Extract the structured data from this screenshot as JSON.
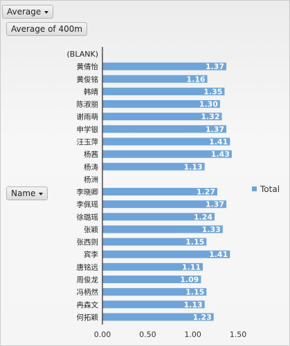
{
  "value_field": {
    "label": "Average"
  },
  "data_field": {
    "label": "Average of 400m"
  },
  "axis_field": {
    "label": "Name"
  },
  "legend": {
    "label": "Total"
  },
  "colors": {
    "bar": "#6fa4d9",
    "bar_label": "#ffffff"
  },
  "chart_data": {
    "type": "bar",
    "orientation": "horizontal",
    "categories": [
      "(BLANK)",
      "黄倩怡",
      "黄俊铭",
      "韩晴",
      "陈淑丽",
      "谢雨萌",
      "申学银",
      "汪玉萍",
      "杨茜",
      "杨涛",
      "杨洲",
      "李晓卿",
      "李佩瑶",
      "徐璐瑶",
      "张颖",
      "张西则",
      "宾李",
      "唐铭远",
      "周俊龙",
      "冯柄然",
      "冉森文",
      "何拓颖"
    ],
    "series": [
      {
        "name": "Total",
        "values": [
          null,
          1.37,
          1.16,
          1.35,
          1.3,
          1.32,
          1.37,
          1.41,
          1.43,
          1.13,
          null,
          1.27,
          1.37,
          1.24,
          1.33,
          1.15,
          1.41,
          1.11,
          1.09,
          1.15,
          1.13,
          1.23
        ]
      }
    ],
    "data_labels": [
      "",
      "1.37",
      "1.16",
      "1.35",
      "1.30",
      "1.32",
      "1.37",
      "1.41",
      "1.43",
      "1.13",
      "",
      "1.27",
      "1.37",
      "1.24",
      "1.33",
      "1.15",
      "1.41",
      "1.11",
      "1.09",
      "1.15",
      "1.13",
      "1.23"
    ],
    "xlim": [
      0,
      1.5
    ],
    "x_ticks": [
      "0.00",
      "0.50",
      "1.00",
      "1.50"
    ],
    "grid": false,
    "legend_position": "right"
  }
}
